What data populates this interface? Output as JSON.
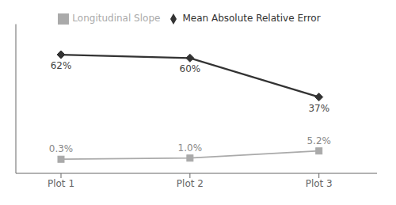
{
  "chart_data": {
    "type": "line",
    "x": [
      1,
      2,
      3
    ],
    "xlim": [
      0.65,
      3.45
    ],
    "xticks": [
      {
        "value": 1,
        "label": "Plot 1"
      },
      {
        "value": 2,
        "label": "Plot 2"
      },
      {
        "value": 3,
        "label": "Plot 3"
      }
    ],
    "ylim": [
      -8,
      80
    ],
    "yticks": [],
    "tick_labels": "x",
    "grid": false,
    "legend": "top",
    "data_labels": true,
    "series": [
      {
        "name": "Mean Absolute Relative Error",
        "color": "#333333",
        "marker": "diamond",
        "values": [
          62,
          60,
          37
        ],
        "value_labels": [
          "62%",
          "60%",
          "37%"
        ]
      },
      {
        "name": "Longitudinal Slope",
        "color": "#aaaaaa",
        "marker": "square",
        "values": [
          0.3,
          1.0,
          5.2
        ],
        "value_labels": [
          "0.3%",
          "1.0%",
          "5.2%"
        ]
      }
    ]
  }
}
